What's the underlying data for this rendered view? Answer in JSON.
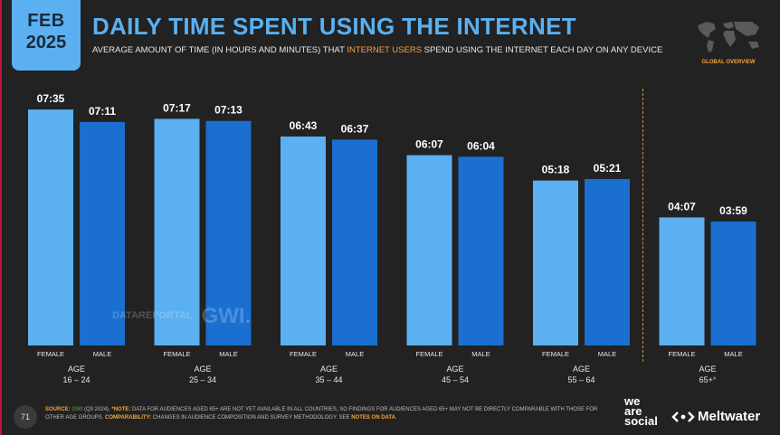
{
  "header": {
    "month": "FEB",
    "year": "2025",
    "title": "DAILY TIME SPENT USING THE INTERNET",
    "subtitle_pre": "AVERAGE AMOUNT OF TIME (IN HOURS AND MINUTES) THAT ",
    "subtitle_highlight": "INTERNET USERS",
    "subtitle_post": " SPEND USING THE INTERNET EACH DAY ON ANY DEVICE",
    "global_overview": "GLOBAL OVERVIEW"
  },
  "colors": {
    "female": "#5ab0f0",
    "male": "#1a6fd0",
    "accent": "#f3a43b",
    "background": "#222222"
  },
  "watermark": {
    "text1": "DATAREPORTAL",
    "text2": "GWI."
  },
  "chart_data": {
    "type": "bar",
    "age_label": "AGE",
    "categories": [
      "16 – 24",
      "25 – 34",
      "35 – 44",
      "45 – 54",
      "55 – 64",
      "65+"
    ],
    "series": [
      {
        "name": "FEMALE",
        "values": [
          "07:35",
          "07:17",
          "06:43",
          "06:07",
          "05:18",
          "04:07"
        ]
      },
      {
        "name": "MALE",
        "values": [
          "07:11",
          "07:13",
          "06:37",
          "06:04",
          "05:21",
          "03:59"
        ]
      }
    ],
    "asterisk_category": "65+",
    "asterisk": "*"
  },
  "footer": {
    "page_number": "71",
    "source_label": "SOURCE:",
    "source_gwi": "GWI",
    "source_detail": " (Q3 2024). ",
    "note_label": "*NOTE:",
    "note_text": " DATA FOR AUDIENCES AGED 65+ ARE NOT YET AVAILABLE IN ALL COUNTRIES, SO FINDINGS FOR AUDIENCES AGED 65+ MAY NOT BE DIRECTLY COMPARABLE WITH THOSE FOR OTHER AGE GROUPS. ",
    "comparability_label": "COMPARABILITY:",
    "comparability_text": " CHANGES IN AUDIENCE COMPOSITION AND SURVEY METHODOLOGY. SEE ",
    "notes_link": "NOTES ON DATA",
    "end": ".",
    "brand_we": "we",
    "brand_are": "are",
    "brand_social": "social",
    "brand_meltwater": "Meltwater"
  }
}
